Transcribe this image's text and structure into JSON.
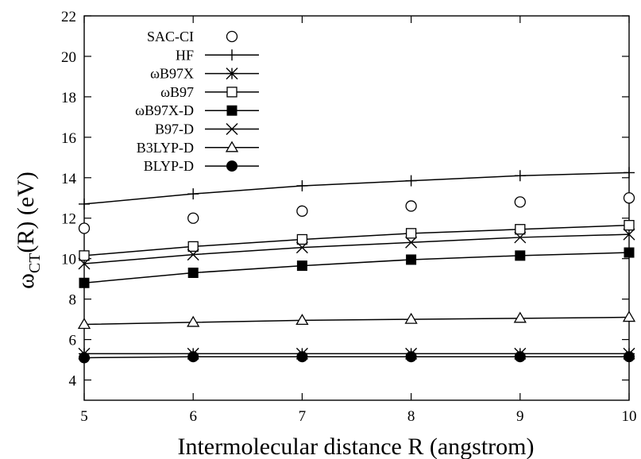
{
  "chart_data": {
    "type": "line",
    "title": "",
    "xlabel": "Intermolecular distance R (angstrom)",
    "ylabel": "ωCT(R) (eV)",
    "ylabel_parts": {
      "main": "ω",
      "sub": "CT",
      "rest": "(R) (eV)"
    },
    "xlim": [
      5,
      10
    ],
    "ylim": [
      3,
      22
    ],
    "xticks": [
      5,
      6,
      7,
      8,
      9,
      10
    ],
    "yticks": [
      4,
      6,
      8,
      10,
      12,
      14,
      16,
      18,
      20,
      22
    ],
    "grid": false,
    "legend_position": "top-left",
    "x": [
      5,
      6,
      7,
      8,
      9,
      10
    ],
    "series": [
      {
        "name": "SAC-CI",
        "marker": "circle-open",
        "line": false,
        "values": [
          11.5,
          12.0,
          12.35,
          12.6,
          12.8,
          13.0
        ]
      },
      {
        "name": "HF",
        "marker": "plus",
        "line": true,
        "values": [
          12.7,
          13.2,
          13.6,
          13.85,
          14.1,
          14.25
        ]
      },
      {
        "name": "ωB97X",
        "marker": "asterisk",
        "line": true,
        "values": [
          5.3,
          5.3,
          5.3,
          5.3,
          5.3,
          5.3
        ]
      },
      {
        "name": "ωB97",
        "marker": "square-open",
        "line": true,
        "values": [
          10.15,
          10.6,
          10.95,
          11.25,
          11.45,
          11.65
        ]
      },
      {
        "name": "ωB97X-D",
        "marker": "square-filled",
        "line": true,
        "values": [
          8.8,
          9.3,
          9.65,
          9.95,
          10.15,
          10.3
        ]
      },
      {
        "name": "B97-D",
        "marker": "x",
        "line": true,
        "values": [
          9.75,
          10.2,
          10.55,
          10.8,
          11.05,
          11.2
        ]
      },
      {
        "name": "B3LYP-D",
        "marker": "triangle-open",
        "line": true,
        "values": [
          6.75,
          6.85,
          6.95,
          7.0,
          7.05,
          7.1
        ]
      },
      {
        "name": "BLYP-D",
        "marker": "circle-filled",
        "line": true,
        "values": [
          5.1,
          5.15,
          5.15,
          5.15,
          5.15,
          5.15
        ]
      }
    ]
  }
}
